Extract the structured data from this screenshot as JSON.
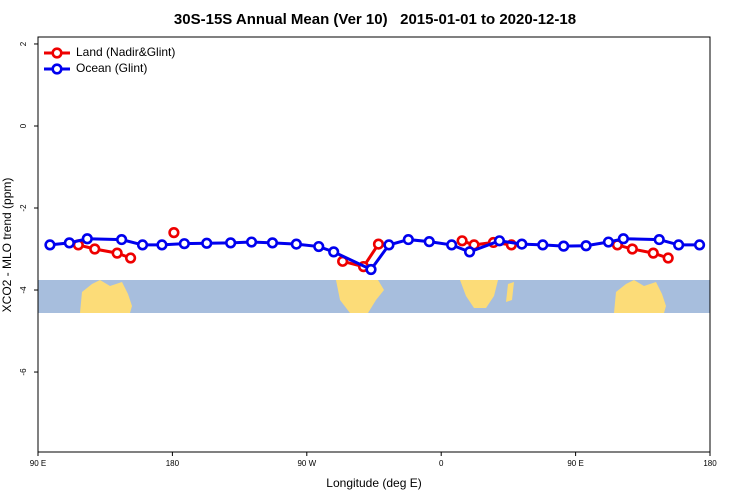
{
  "chart_data": {
    "type": "line",
    "title": "30S-15S Annual Mean (Ver 10)   2015-01-01 to 2020-12-18",
    "x_label": "Longitude (deg E)",
    "y_label": "XCO2 - MLO trend (ppm)",
    "xlim": [
      90,
      540
    ],
    "xticks": [
      {
        "value": 90,
        "label": "90 E"
      },
      180,
      {
        "value": 270,
        "label": "90 W"
      },
      {
        "value": 360,
        "label": "0"
      },
      {
        "value": 450,
        "label": "90 E"
      },
      {
        "value": 540,
        "label": "180"
      }
    ],
    "ylim": [
      -7.95,
      2.17
    ],
    "yticks": [
      2,
      0,
      -2,
      -4,
      -6
    ],
    "legend": "top-left",
    "series": [
      {
        "name": "Land (Nadir&Glint)",
        "color": "#ee0000",
        "x": [
          117,
          128,
          143,
          152,
          null,
          181,
          null,
          294,
          308,
          318,
          null,
          374,
          382,
          395,
          407,
          null,
          478,
          488,
          502,
          512
        ],
        "values": [
          -2.9,
          -3.0,
          -3.1,
          -3.22,
          null,
          -2.6,
          null,
          -3.3,
          -3.43,
          -2.88,
          null,
          -2.8,
          -2.9,
          -2.84,
          -2.9,
          null,
          -2.9,
          -3.0,
          -3.1,
          -3.22
        ]
      },
      {
        "name": "Ocean (Glint)",
        "color": "#0000ee",
        "x": [
          98,
          111,
          123,
          146,
          160,
          173,
          188,
          203,
          219,
          233,
          247,
          263,
          278,
          288,
          313,
          325,
          338,
          352,
          367,
          379,
          399,
          414,
          428,
          442,
          457,
          472,
          482,
          506,
          519,
          533
        ],
        "values": [
          -2.9,
          -2.85,
          -2.75,
          -2.77,
          -2.9,
          -2.9,
          -2.87,
          -2.86,
          -2.85,
          -2.83,
          -2.85,
          -2.88,
          -2.94,
          -3.07,
          -3.5,
          -2.9,
          -2.77,
          -2.82,
          -2.9,
          -3.07,
          -2.8,
          -2.88,
          -2.9,
          -2.93,
          -2.92,
          -2.83,
          -2.75,
          -2.77,
          -2.9,
          -2.9
        ]
      }
    ]
  }
}
